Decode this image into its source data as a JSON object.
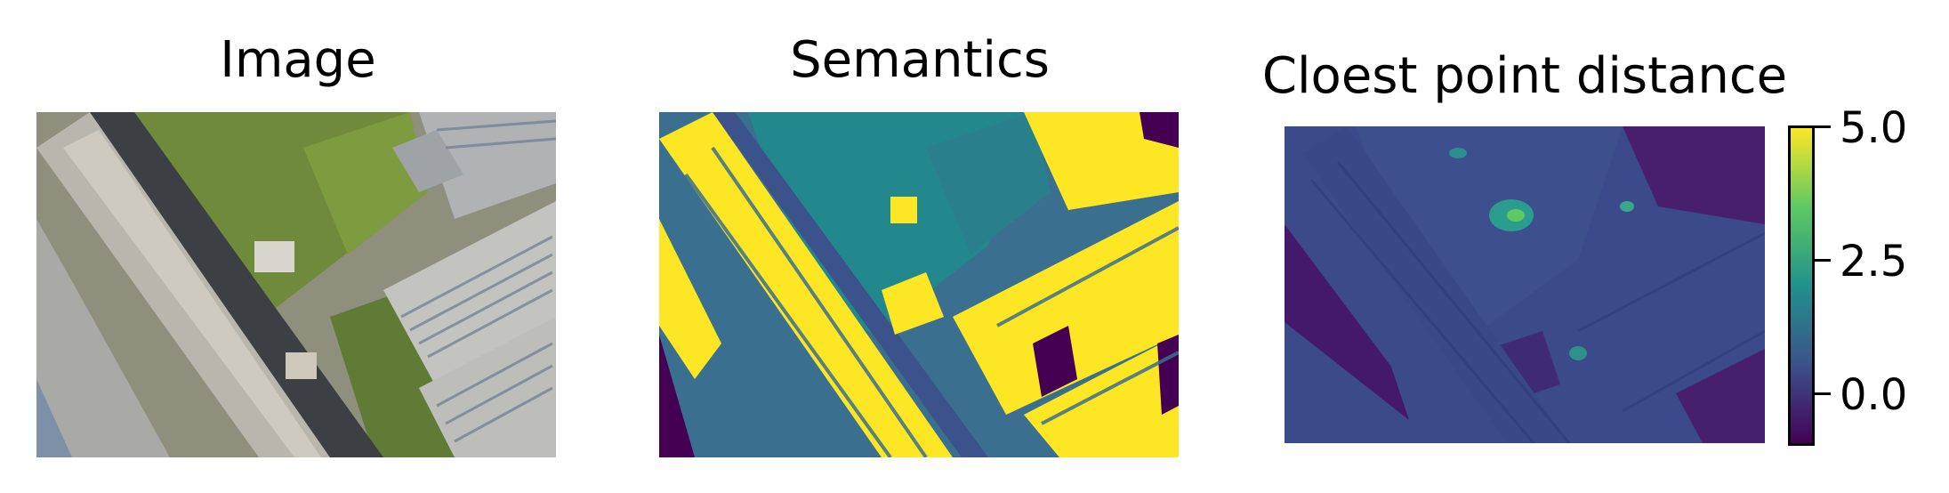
{
  "panels": [
    {
      "title": "Image",
      "content": "aerial-photo"
    },
    {
      "title": "Semantics",
      "content": "semantic-segmentation"
    },
    {
      "title": "Cloest point distance",
      "content": "distance-map"
    }
  ],
  "colorbar": {
    "colormap": "viridis",
    "range": [
      -1.0,
      5.0
    ],
    "ticks": [
      "5.0",
      "2.5",
      "0.0"
    ],
    "tick_values": [
      5.0,
      2.5,
      0.0
    ],
    "colors": [
      "#440154",
      "#3b528b",
      "#21918c",
      "#5ec962",
      "#fde725"
    ]
  },
  "palette": {
    "roof_gray": "#b9b6ae",
    "vegetation": "#6f8a3a",
    "road_dark": "#3c3f44",
    "seg_yellow": "#fde725",
    "seg_teal": "#23888e",
    "seg_blue": "#3b6f8f",
    "seg_purple": "#440154",
    "dist_base": "#3b4a8a"
  }
}
